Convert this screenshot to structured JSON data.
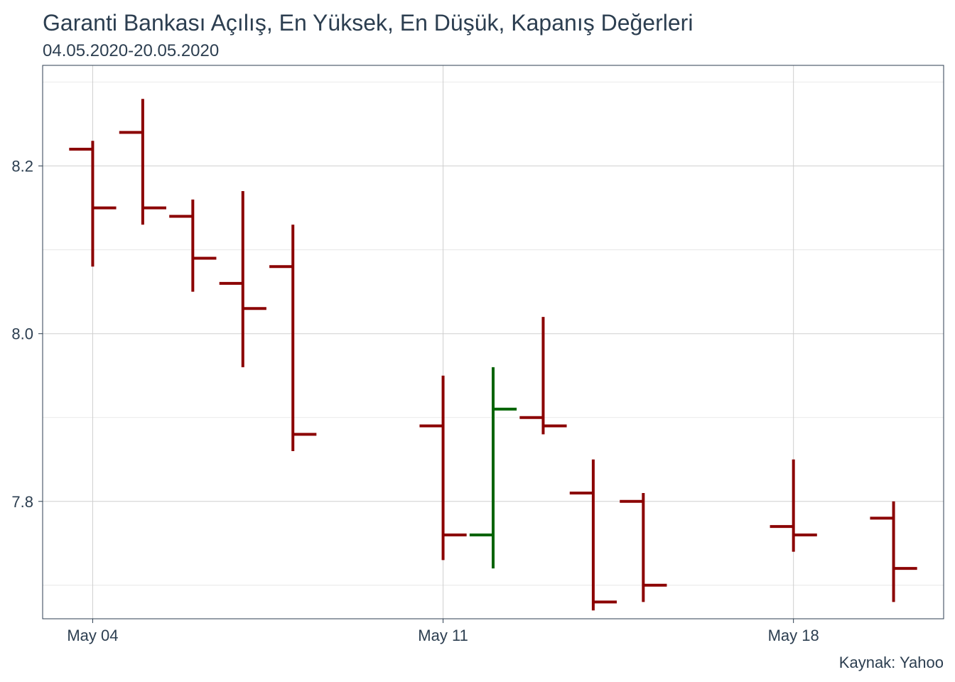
{
  "header": {
    "title": "Garanti Bankası Açılış, En Yüksek, En Düşük, Kapanış Değerleri",
    "subtitle": "04.05.2020-20.05.2020"
  },
  "footer": {
    "caption": "Kaynak: Yahoo"
  },
  "chart_data": {
    "type": "ohlc",
    "title": "Garanti Bankası Açılış, En Yüksek, En Düşük, Kapanış Değerleri",
    "subtitle": "04.05.2020-20.05.2020",
    "caption": "Kaynak: Yahoo",
    "xlabel": "",
    "ylabel": "",
    "xlim": [
      "2020-05-03",
      "2020-05-21"
    ],
    "ylim": [
      7.66,
      8.32
    ],
    "x_ticks": [
      {
        "date": "2020-05-04",
        "label": "May 04"
      },
      {
        "date": "2020-05-11",
        "label": "May 11"
      },
      {
        "date": "2020-05-18",
        "label": "May 18"
      }
    ],
    "y_ticks": [
      {
        "value": 7.8,
        "label": "7.8"
      },
      {
        "value": 8.0,
        "label": "8.0"
      },
      {
        "value": 8.2,
        "label": "8.2"
      }
    ],
    "grid": true,
    "colors": {
      "up": "#006400",
      "down": "#8b0000"
    },
    "series": [
      {
        "date": "2020-05-04",
        "open": 8.22,
        "high": 8.23,
        "low": 8.08,
        "close": 8.15
      },
      {
        "date": "2020-05-05",
        "open": 8.24,
        "high": 8.28,
        "low": 8.13,
        "close": 8.15
      },
      {
        "date": "2020-05-06",
        "open": 8.14,
        "high": 8.16,
        "low": 8.05,
        "close": 8.09
      },
      {
        "date": "2020-05-07",
        "open": 8.06,
        "high": 8.17,
        "low": 7.96,
        "close": 8.03
      },
      {
        "date": "2020-05-08",
        "open": 8.08,
        "high": 8.13,
        "low": 7.86,
        "close": 7.88
      },
      {
        "date": "2020-05-11",
        "open": 7.89,
        "high": 7.95,
        "low": 7.73,
        "close": 7.76
      },
      {
        "date": "2020-05-12",
        "open": 7.76,
        "high": 7.96,
        "low": 7.72,
        "close": 7.91
      },
      {
        "date": "2020-05-13",
        "open": 7.9,
        "high": 8.02,
        "low": 7.88,
        "close": 7.89
      },
      {
        "date": "2020-05-14",
        "open": 7.81,
        "high": 7.85,
        "low": 7.67,
        "close": 7.68
      },
      {
        "date": "2020-05-15",
        "open": 7.8,
        "high": 7.81,
        "low": 7.68,
        "close": 7.7
      },
      {
        "date": "2020-05-18",
        "open": 7.77,
        "high": 7.85,
        "low": 7.74,
        "close": 7.76
      },
      {
        "date": "2020-05-20",
        "open": 7.78,
        "high": 7.8,
        "low": 7.68,
        "close": 7.72
      }
    ]
  }
}
